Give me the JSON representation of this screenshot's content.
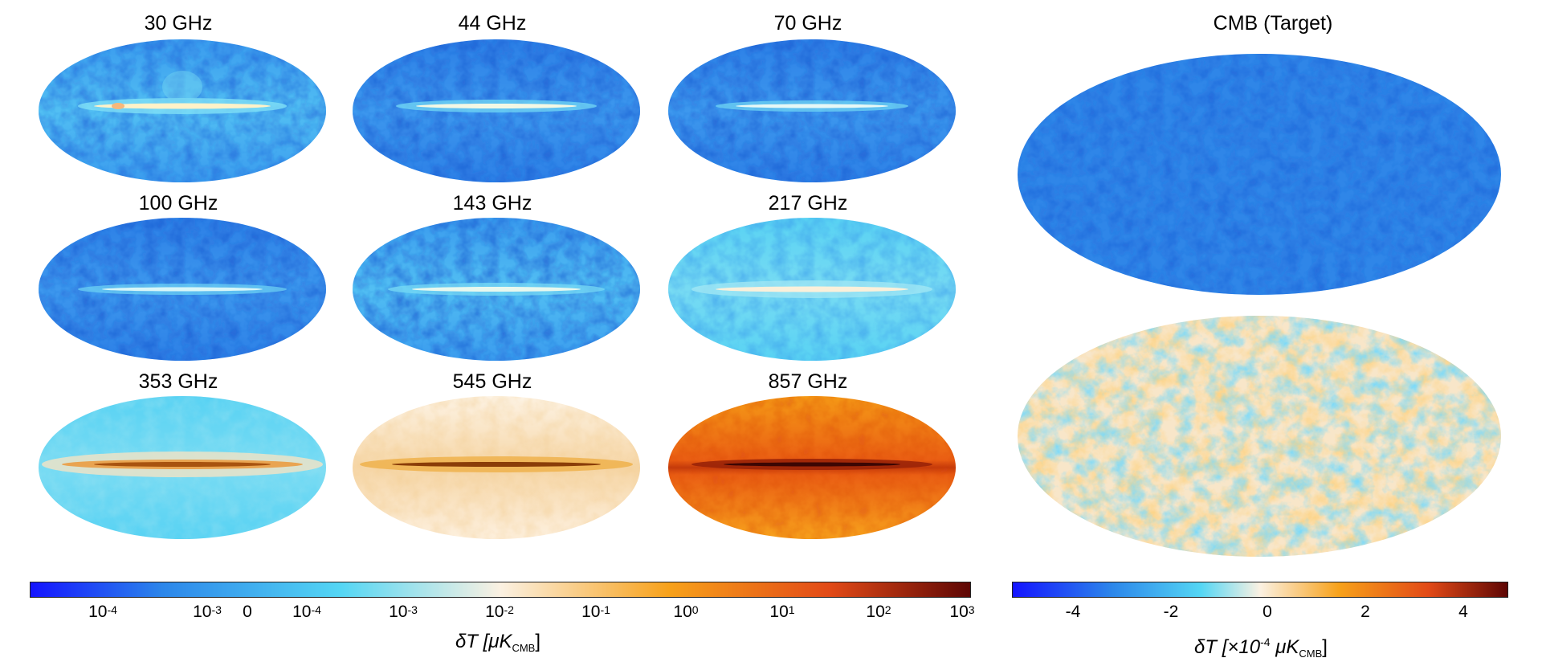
{
  "panels": [
    {
      "label": "30 GHz"
    },
    {
      "label": "44 GHz"
    },
    {
      "label": "70 GHz"
    },
    {
      "label": "100 GHz"
    },
    {
      "label": "143 GHz"
    },
    {
      "label": "217 GHz"
    },
    {
      "label": "353 GHz"
    },
    {
      "label": "545 GHz"
    },
    {
      "label": "857 GHz"
    }
  ],
  "target": {
    "label": "CMB (Target)"
  },
  "left_colorbar": {
    "ticks": [
      {
        "base": "10",
        "exp": "-4"
      },
      {
        "base": "10",
        "exp": "-3"
      },
      {
        "base": "0",
        "exp": ""
      },
      {
        "base": "10",
        "exp": "-4"
      },
      {
        "base": "10",
        "exp": "-3"
      },
      {
        "base": "10",
        "exp": "-2"
      },
      {
        "base": "10",
        "exp": "-1"
      },
      {
        "base": "10",
        "exp": "0"
      },
      {
        "base": "10",
        "exp": "1"
      },
      {
        "base": "10",
        "exp": "2"
      },
      {
        "base": "10",
        "exp": "3"
      }
    ],
    "label_main": "δT [",
    "label_unit": "μK",
    "label_sub": "CMB",
    "label_end": "]"
  },
  "right_colorbar": {
    "ticks": [
      "-4",
      "-2",
      "0",
      "2",
      "4"
    ],
    "label_main": "δT [×10",
    "label_exp": "-4",
    "label_unit": " μK",
    "label_sub": "CMB",
    "label_end": "]"
  },
  "colors": {
    "deep_blue": "#1a1aff",
    "mid_blue": "#2f86e8",
    "cyan": "#4fd3f2",
    "cream": "#fbeedd",
    "orange": "#f79a12",
    "red_orange": "#e8501a",
    "dark_red": "#6b0a05"
  }
}
